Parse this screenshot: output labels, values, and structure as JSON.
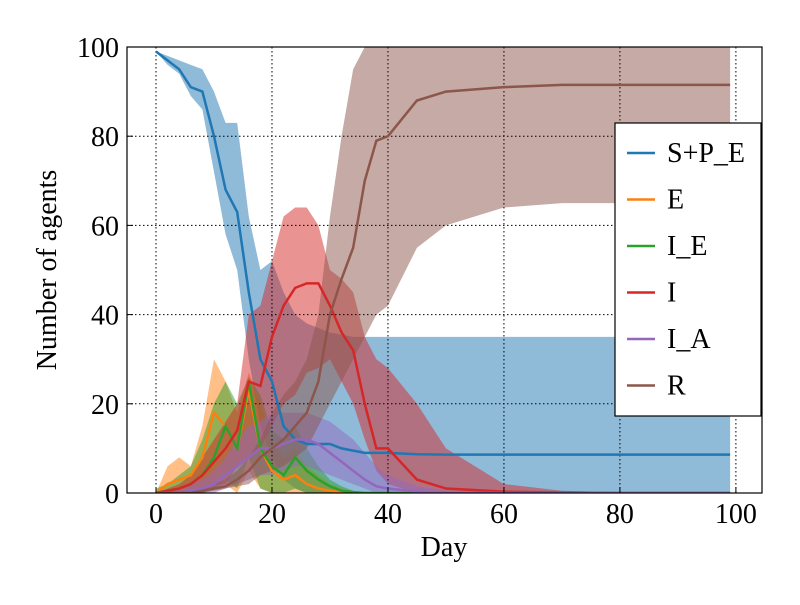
{
  "chart_data": {
    "type": "line",
    "xlabel": "Day",
    "ylabel": "Number of agents",
    "x": [
      0,
      2,
      4,
      6,
      8,
      10,
      12,
      14,
      16,
      18,
      20,
      22,
      24,
      26,
      28,
      30,
      32,
      34,
      36,
      38,
      40,
      45,
      50,
      60,
      70,
      80,
      90,
      99
    ],
    "xlim": [
      -5,
      104.5
    ],
    "xticks": [
      0,
      20,
      40,
      60,
      80,
      100
    ],
    "ylim": [
      0,
      100
    ],
    "yticks": [
      0,
      20,
      40,
      60,
      80,
      100
    ],
    "grid": true,
    "legend": "right",
    "series": [
      {
        "name": "S+P_E",
        "color": "#1f77b4",
        "values": [
          99,
          97,
          95,
          91,
          90,
          80,
          68,
          63,
          45,
          30,
          25,
          15,
          12,
          11,
          11,
          11,
          10,
          9.5,
          9,
          9,
          9,
          8.7,
          8.6,
          8.6,
          8.6,
          8.6,
          8.6,
          8.6
        ],
        "lower": [
          99,
          96,
          94,
          89,
          86,
          72,
          58,
          50,
          30,
          15,
          8,
          3,
          1,
          0,
          0,
          0,
          0,
          0,
          0,
          0,
          0,
          0,
          0,
          0,
          0,
          0,
          0,
          0
        ],
        "upper": [
          99,
          98,
          97,
          96,
          95,
          90,
          83,
          83,
          62,
          50,
          52,
          45,
          40,
          38,
          37,
          36,
          35.5,
          35,
          35,
          35,
          35,
          35,
          35,
          35,
          35,
          35,
          35,
          35
        ]
      },
      {
        "name": "E",
        "color": "#ff7f0e",
        "values": [
          0,
          2,
          3,
          4,
          8,
          18,
          15,
          10,
          23,
          10,
          5,
          3,
          4,
          2,
          1,
          0.5,
          0.2,
          0,
          0,
          0,
          0,
          0,
          0,
          0,
          0,
          0,
          0,
          0
        ],
        "lower": [
          0,
          0,
          0,
          0,
          0,
          2,
          2,
          0,
          5,
          1,
          0,
          0,
          0,
          0,
          0,
          0,
          0,
          0,
          0,
          0,
          0,
          0,
          0,
          0,
          0,
          0,
          0,
          0
        ],
        "upper": [
          0,
          6,
          8,
          6,
          15,
          30,
          25,
          18,
          27,
          20,
          12,
          8,
          10,
          6,
          4,
          2,
          1,
          0.5,
          0,
          0,
          0,
          0,
          0,
          0,
          0,
          0,
          0,
          0
        ]
      },
      {
        "name": "I_E",
        "color": "#2ca02c",
        "values": [
          0,
          0.5,
          1,
          2,
          4,
          8,
          15,
          10,
          25,
          10,
          6,
          4,
          8,
          5,
          3,
          1.5,
          0.5,
          0.2,
          0,
          0,
          0,
          0,
          0,
          0,
          0,
          0,
          0,
          0
        ],
        "lower": [
          0,
          0,
          0,
          0,
          0,
          1,
          3,
          1,
          8,
          1,
          0,
          0,
          1,
          0,
          0,
          0,
          0,
          0,
          0,
          0,
          0,
          0,
          0,
          0,
          0,
          0,
          0,
          0
        ],
        "upper": [
          1,
          2,
          4,
          6,
          12,
          20,
          25,
          20,
          26,
          22,
          14,
          12,
          15,
          10,
          6,
          3,
          1.5,
          0.5,
          0,
          0,
          0,
          0,
          0,
          0,
          0,
          0,
          0,
          0
        ]
      },
      {
        "name": "I",
        "color": "#d62728",
        "values": [
          0,
          0.5,
          1,
          2,
          4,
          7,
          10,
          14,
          25,
          24,
          35,
          42,
          46,
          47,
          47,
          42,
          36,
          32,
          20,
          10,
          10,
          3,
          1,
          0.3,
          0.1,
          0,
          0,
          0
        ],
        "lower": [
          0,
          0,
          0,
          0,
          0,
          1,
          2,
          6,
          8,
          10,
          15,
          20,
          22,
          27,
          28,
          30,
          25,
          20,
          12,
          5,
          2,
          0,
          0,
          0,
          0,
          0,
          0,
          0
        ],
        "upper": [
          0,
          1,
          2,
          4,
          8,
          12,
          16,
          20,
          40,
          42,
          52,
          62,
          64,
          64,
          60,
          50,
          48,
          45,
          35,
          30,
          28,
          20,
          10,
          2,
          0.5,
          0.2,
          0,
          0
        ]
      },
      {
        "name": "I_A",
        "color": "#9467bd",
        "values": [
          0,
          0,
          0,
          0.5,
          1,
          2,
          4,
          6,
          8,
          10,
          10,
          11,
          12,
          12,
          11,
          9,
          7,
          5,
          3,
          1.5,
          1,
          0.3,
          0.1,
          0,
          0,
          0,
          0,
          0
        ],
        "lower": [
          0,
          0,
          0,
          0,
          0,
          0,
          1,
          2,
          3,
          4,
          4,
          5,
          6,
          6,
          5,
          4,
          3,
          2,
          1,
          0,
          0,
          0,
          0,
          0,
          0,
          0,
          0,
          0
        ],
        "upper": [
          0,
          0.5,
          1,
          2,
          3,
          5,
          8,
          12,
          15,
          16,
          18,
          18,
          18,
          18,
          17,
          16,
          14,
          12,
          9,
          6,
          4,
          1.5,
          0.5,
          0,
          0,
          0,
          0,
          0
        ]
      },
      {
        "name": "R",
        "color": "#8c564b",
        "values": [
          0,
          0,
          0,
          0,
          0.5,
          1,
          1.5,
          3,
          5,
          8,
          10,
          12,
          15,
          18,
          25,
          40,
          48,
          55,
          70,
          79,
          80,
          88,
          90,
          91,
          91.5,
          91.5,
          91.5,
          91.5
        ],
        "lower": [
          0,
          0,
          0,
          0,
          0,
          0.5,
          1,
          1.5,
          2,
          4,
          5,
          6,
          8,
          10,
          15,
          20,
          25,
          30,
          35,
          40,
          42,
          55,
          60,
          64,
          65,
          65,
          65,
          65
        ],
        "upper": [
          0,
          0,
          0,
          0,
          1,
          2,
          3,
          5,
          8,
          12,
          18,
          22,
          25,
          30,
          40,
          62,
          80,
          95,
          100,
          100,
          100,
          100,
          100,
          100,
          100,
          100,
          100,
          100
        ]
      }
    ]
  }
}
